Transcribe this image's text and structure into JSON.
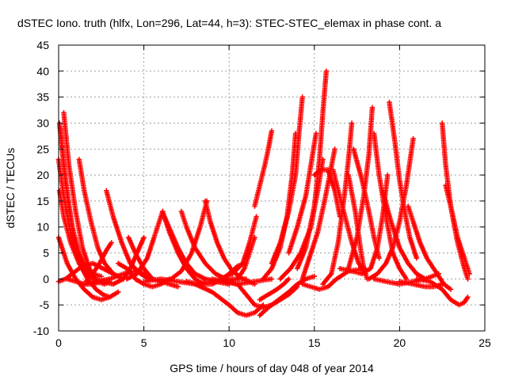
{
  "chart_data": {
    "type": "scatter",
    "title": "dSTEC Iono. truth (hlfx, Lon=296, Lat=44, h=3): STEC-STEC_elemax in phase cont. a",
    "xlabel": "GPS time / hours of day 048 of year 2014",
    "ylabel": "dSTEC  / TECUs",
    "xlim": [
      0,
      25
    ],
    "ylim": [
      -10,
      45
    ],
    "xticks": [
      "0",
      "5",
      "10",
      "15",
      "20",
      "25"
    ],
    "yticks": [
      "-10",
      "-5",
      "0",
      "5",
      "10",
      "15",
      "20",
      "25",
      "30",
      "35",
      "40",
      "45"
    ],
    "grid": true,
    "marker": "plus",
    "color": "#ff0000",
    "series": [
      {
        "x": [
          0.05,
          0.3,
          0.6,
          0.9,
          1.2,
          1.5,
          1.8
        ],
        "y": [
          30,
          22,
          14,
          8,
          4,
          1.5,
          0.5
        ]
      },
      {
        "x": [
          0.3,
          0.6,
          1.0,
          1.4,
          1.8,
          2.2,
          2.6
        ],
        "y": [
          32,
          22,
          13,
          6,
          2,
          0,
          -0.5
        ]
      },
      {
        "x": [
          0.1,
          0.4,
          0.8,
          1.2,
          1.6,
          2.0,
          2.5
        ],
        "y": [
          29,
          19,
          10,
          5,
          2,
          1,
          0.5
        ]
      },
      {
        "x": [
          0.0,
          0.3,
          0.7,
          1.2,
          1.7,
          2.2,
          2.7,
          3.0
        ],
        "y": [
          23,
          16,
          9,
          4,
          1,
          -0.5,
          -1,
          -0.5
        ]
      },
      {
        "x": [
          0.05,
          0.3,
          0.7,
          1.2,
          1.7,
          2.2,
          2.6,
          3.0
        ],
        "y": [
          17,
          12,
          7,
          3,
          0,
          -2,
          -3,
          -3.5
        ]
      },
      {
        "x": [
          0.0,
          0.5,
          1.0,
          1.5,
          2.0,
          2.5,
          3.0,
          3.5
        ],
        "y": [
          8,
          3,
          0,
          -2,
          -3.5,
          -4,
          -3.5,
          -2.5
        ]
      },
      {
        "x": [
          1.2,
          1.5,
          1.9,
          2.3,
          2.7,
          3.2,
          3.8
        ],
        "y": [
          23,
          17,
          11,
          6,
          3,
          1,
          0
        ]
      },
      {
        "x": [
          0.0,
          0.4,
          0.8,
          1.4,
          2.0,
          2.6,
          3.2
        ],
        "y": [
          -0.5,
          0,
          1,
          2.5,
          3,
          2,
          1
        ]
      },
      {
        "x": [
          0.5,
          1.0,
          1.5,
          2.0,
          2.5,
          3.0
        ],
        "y": [
          0,
          -0.5,
          -1,
          -1,
          -0.5,
          0
        ]
      },
      {
        "x": [
          1.6,
          2.0,
          2.4,
          2.8,
          3.1
        ],
        "y": [
          -0.5,
          1,
          3,
          5.5,
          7
        ]
      },
      {
        "x": [
          2.8,
          3.2,
          3.7,
          4.2,
          4.8,
          5.3
        ],
        "y": [
          17,
          12,
          7,
          3,
          1,
          0
        ]
      },
      {
        "x": [
          1.5,
          2.2,
          3.0,
          3.8,
          4.5,
          5.2
        ],
        "y": [
          -1,
          -0.5,
          0,
          1,
          1.5,
          1
        ]
      },
      {
        "x": [
          3.5,
          4.0,
          4.5,
          5.0,
          5.5,
          6.0,
          6.5
        ],
        "y": [
          3,
          2,
          0,
          -1,
          -1.5,
          -1,
          0
        ]
      },
      {
        "x": [
          2.5,
          3.2,
          3.8,
          4.2,
          4.6,
          5.0
        ],
        "y": [
          -0.5,
          -1,
          0,
          2,
          5,
          8
        ]
      },
      {
        "x": [
          4.1,
          4.5,
          5.0,
          5.5,
          6.0,
          6.5,
          7.0
        ],
        "y": [
          8,
          5,
          2,
          0,
          -0.5,
          -1,
          -1.5
        ]
      },
      {
        "x": [
          4.0,
          4.6,
          5.2,
          5.6,
          5.9,
          6.1
        ],
        "y": [
          0,
          1,
          4,
          8,
          11,
          13
        ]
      },
      {
        "x": [
          6.1,
          6.5,
          7.0,
          7.5,
          8.0,
          8.5
        ],
        "y": [
          13,
          9,
          5,
          2,
          0,
          -1
        ]
      },
      {
        "x": [
          6.2,
          6.6,
          7.0,
          7.5,
          8.0,
          8.6,
          9.2,
          10.0
        ],
        "y": [
          12,
          9,
          6,
          3,
          1,
          0,
          -0.5,
          -1
        ]
      },
      {
        "x": [
          5.5,
          6.0,
          6.6,
          7.2,
          7.8,
          8.3,
          8.7
        ],
        "y": [
          0,
          -0.5,
          0,
          1.5,
          5,
          10,
          15
        ]
      },
      {
        "x": [
          7.2,
          7.5,
          8.0,
          8.6,
          9.2,
          9.8,
          10.4
        ],
        "y": [
          13,
          10,
          6,
          3,
          1,
          0,
          -1
        ]
      },
      {
        "x": [
          8.6,
          8.9,
          9.3,
          9.7,
          10.2,
          10.8,
          11.5
        ],
        "y": [
          15,
          11,
          7,
          4,
          1.5,
          0,
          -1
        ]
      },
      {
        "x": [
          7.5,
          8.2,
          9.0,
          9.6,
          10.0,
          10.5,
          11.0
        ],
        "y": [
          -0.5,
          -1,
          -1,
          0,
          1,
          2.5,
          3
        ]
      },
      {
        "x": [
          8.5,
          9.5,
          10.5,
          11.5,
          12.5
        ],
        "y": [
          0,
          -0.5,
          -1,
          -0.5,
          0
        ]
      },
      {
        "x": [
          8.0,
          9.0,
          10.0,
          10.5,
          11.0,
          11.5,
          12.0
        ],
        "y": [
          -1,
          -2.5,
          -5,
          -6.5,
          -7,
          -6.5,
          -5
        ]
      },
      {
        "x": [
          9.0,
          9.8,
          10.5,
          10.9,
          11.2,
          11.5
        ],
        "y": [
          0,
          -0.5,
          0,
          2,
          5,
          8
        ]
      },
      {
        "x": [
          9.5,
          10.2,
          10.8,
          11.2,
          11.6
        ],
        "y": [
          0,
          1,
          3,
          7,
          12
        ]
      },
      {
        "x": [
          11.5,
          11.8,
          12.1,
          12.3,
          12.5
        ],
        "y": [
          14,
          18,
          22,
          25,
          28.5
        ]
      },
      {
        "x": [
          11.8,
          12.3,
          12.8,
          13.2,
          13.5
        ],
        "y": [
          -4,
          -3,
          -2,
          -1,
          0
        ]
      },
      {
        "x": [
          10.5,
          11.0,
          11.5,
          12.0,
          12.5,
          13.0,
          13.5,
          14.0
        ],
        "y": [
          -1,
          -3,
          -5,
          -5.5,
          -5,
          -4,
          -3,
          -1.5
        ]
      },
      {
        "x": [
          11.8,
          12.3,
          12.9,
          13.5,
          14.0,
          14.5,
          15.0
        ],
        "y": [
          -7,
          -5.5,
          -4,
          -2.5,
          -1,
          0,
          0.5
        ]
      },
      {
        "x": [
          12.0,
          12.5,
          13.0,
          13.4,
          13.7,
          13.9
        ],
        "y": [
          0,
          2,
          6,
          12,
          20,
          28
        ]
      },
      {
        "x": [
          12.5,
          13.0,
          13.5,
          13.9,
          14.1,
          14.3
        ],
        "y": [
          3,
          7,
          13,
          20,
          28,
          35
        ]
      },
      {
        "x": [
          13.5,
          14.0,
          14.5,
          14.8,
          15.1
        ],
        "y": [
          5,
          10,
          16,
          22,
          28
        ]
      },
      {
        "x": [
          13.0,
          13.6,
          14.2,
          14.8,
          15.2,
          15.5
        ],
        "y": [
          0,
          2,
          5,
          10,
          17,
          23
        ]
      },
      {
        "x": [
          14.0,
          14.5,
          15.0,
          15.3,
          15.5,
          15.7
        ],
        "y": [
          2,
          6,
          14,
          23,
          32,
          40
        ]
      },
      {
        "x": [
          14.3,
          14.7,
          15.2,
          15.6,
          15.9,
          16.2
        ],
        "y": [
          0,
          4,
          9,
          15,
          20,
          25
        ]
      },
      {
        "x": [
          15.0,
          15.4,
          15.8,
          16.2,
          16.5
        ],
        "y": [
          20,
          21,
          21,
          17,
          12
        ]
      },
      {
        "x": [
          16.1,
          16.4,
          16.8,
          17.2,
          17.6,
          18.0
        ],
        "y": [
          21,
          17,
          12,
          7,
          3,
          1
        ]
      },
      {
        "x": [
          15.5,
          16.0,
          16.4,
          16.8,
          17.0,
          17.2
        ],
        "y": [
          -1,
          1,
          7,
          17,
          23,
          30
        ]
      },
      {
        "x": [
          14.3,
          14.8,
          15.3,
          15.8,
          16.3,
          17.0,
          18.0
        ],
        "y": [
          -1,
          -1.5,
          -2,
          -1.5,
          0,
          1.5,
          2
        ]
      },
      {
        "x": [
          17.0,
          17.4,
          17.7,
          17.9,
          18.1
        ],
        "y": [
          20,
          13,
          6,
          2,
          0
        ]
      },
      {
        "x": [
          17.0,
          17.5,
          17.9,
          18.2,
          18.4
        ],
        "y": [
          2,
          8,
          16,
          24,
          33
        ]
      },
      {
        "x": [
          17.3,
          17.8,
          18.2,
          18.5,
          18.8
        ],
        "y": [
          25,
          19,
          13,
          8,
          4
        ]
      },
      {
        "x": [
          16.5,
          17.2,
          17.8,
          18.3,
          18.7,
          19.0,
          19.3
        ],
        "y": [
          2,
          1.5,
          1,
          2,
          6,
          12,
          20
        ]
      },
      {
        "x": [
          18.5,
          18.8,
          19.2,
          19.6,
          20.0,
          20.4
        ],
        "y": [
          28,
          20,
          12,
          5,
          2,
          0
        ]
      },
      {
        "x": [
          19.0,
          19.5,
          20.0,
          20.5,
          21.0,
          21.5
        ],
        "y": [
          17,
          11,
          6,
          3,
          1,
          0
        ]
      },
      {
        "x": [
          19.4,
          19.7,
          20.0,
          20.3,
          20.6,
          21.0
        ],
        "y": [
          34,
          27,
          19,
          13,
          8,
          4
        ]
      },
      {
        "x": [
          18.2,
          18.7,
          19.2,
          19.6,
          20.0,
          20.4,
          20.8
        ],
        "y": [
          0,
          1,
          3,
          6,
          11,
          18,
          27
        ]
      },
      {
        "x": [
          18.5,
          19.2,
          20.0,
          20.8,
          21.5,
          22.3
        ],
        "y": [
          0,
          -0.5,
          -1,
          -0.5,
          0,
          1
        ]
      },
      {
        "x": [
          20.0,
          20.8,
          21.5,
          22.0,
          22.5
        ],
        "y": [
          -0.5,
          -1,
          -1.5,
          -1.5,
          -1
        ]
      },
      {
        "x": [
          20.5,
          20.8,
          21.2,
          21.6,
          22.0,
          22.6,
          23.0
        ],
        "y": [
          14,
          11,
          7,
          4,
          2,
          -1,
          -2
        ]
      },
      {
        "x": [
          22.5,
          22.7,
          23.0,
          23.4,
          23.8,
          24.0
        ],
        "y": [
          30,
          22,
          14,
          7,
          2,
          0
        ]
      },
      {
        "x": [
          22.7,
          23.0,
          23.4,
          23.8,
          24.1
        ],
        "y": [
          18,
          14,
          8,
          4,
          1
        ]
      },
      {
        "x": [
          21.0,
          21.8,
          22.5,
          23.0,
          23.5,
          23.8,
          24.0
        ],
        "y": [
          0,
          -0.5,
          -2,
          -4,
          -5,
          -4.5,
          -3.5
        ]
      },
      {
        "x": [
          5.0,
          6.0,
          7.0,
          8.0,
          9.0,
          10.0,
          11.0
        ],
        "y": [
          -0.5,
          0,
          -0.5,
          -1,
          -0.5,
          0,
          0
        ]
      }
    ]
  }
}
